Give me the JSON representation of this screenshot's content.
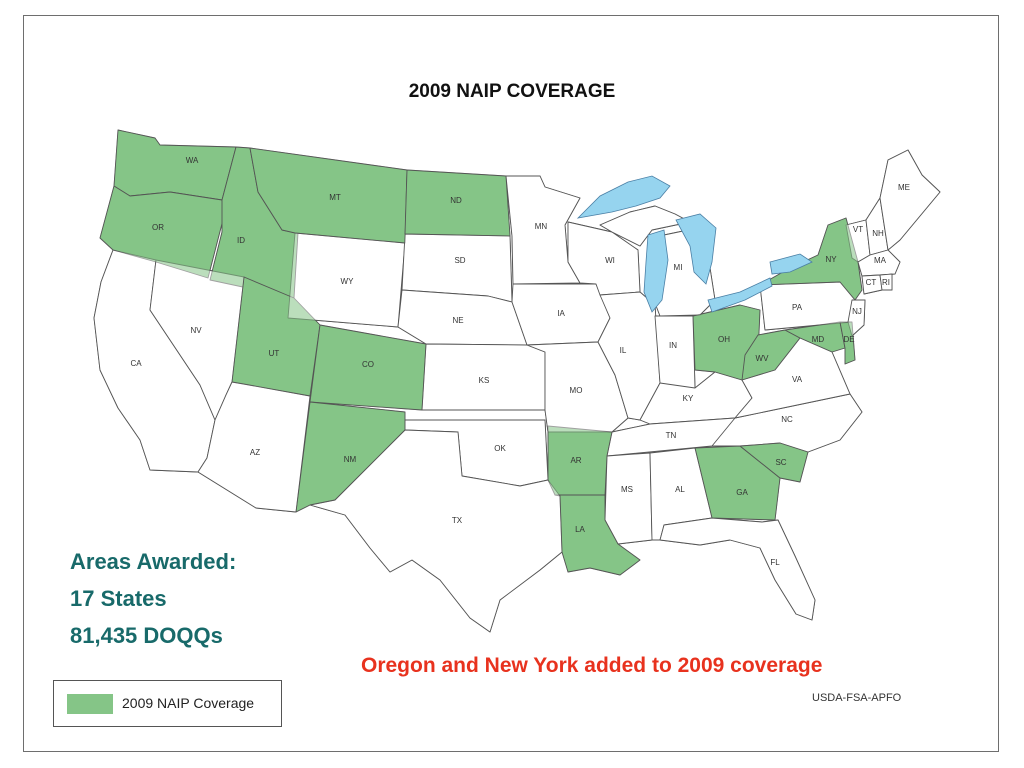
{
  "title": "2009 NAIP COVERAGE",
  "colors": {
    "covered": "#85c587",
    "uncovered": "#ffffff",
    "water": "#96d4ef",
    "border": "#555555",
    "county": "#b9b9b9"
  },
  "summary": {
    "heading": "Areas Awarded:",
    "states": "17 States",
    "doqqs": "81,435 DOQQs"
  },
  "note": "Oregon and New York added to 2009 coverage",
  "credit": "USDA-FSA-APFO",
  "legend": {
    "label": "2009 NAIP Coverage"
  },
  "states": [
    {
      "abbr": "WA",
      "covered": true
    },
    {
      "abbr": "OR",
      "covered": true
    },
    {
      "abbr": "ID",
      "covered": true
    },
    {
      "abbr": "MT",
      "covered": true
    },
    {
      "abbr": "ND",
      "covered": true
    },
    {
      "abbr": "UT",
      "covered": true
    },
    {
      "abbr": "CO",
      "covered": true
    },
    {
      "abbr": "NM",
      "covered": true
    },
    {
      "abbr": "AR",
      "covered": true
    },
    {
      "abbr": "LA",
      "covered": true
    },
    {
      "abbr": "OH",
      "covered": true
    },
    {
      "abbr": "WV",
      "covered": true
    },
    {
      "abbr": "GA",
      "covered": true
    },
    {
      "abbr": "SC",
      "covered": true
    },
    {
      "abbr": "NY",
      "covered": true
    },
    {
      "abbr": "MD",
      "covered": true
    },
    {
      "abbr": "DE",
      "covered": true
    },
    {
      "abbr": "CA",
      "covered": false
    },
    {
      "abbr": "NV",
      "covered": false
    },
    {
      "abbr": "AZ",
      "covered": false
    },
    {
      "abbr": "WY",
      "covered": false
    },
    {
      "abbr": "SD",
      "covered": false
    },
    {
      "abbr": "NE",
      "covered": false
    },
    {
      "abbr": "KS",
      "covered": false
    },
    {
      "abbr": "OK",
      "covered": false
    },
    {
      "abbr": "TX",
      "covered": false
    },
    {
      "abbr": "MN",
      "covered": false
    },
    {
      "abbr": "IA",
      "covered": false
    },
    {
      "abbr": "MO",
      "covered": false
    },
    {
      "abbr": "WI",
      "covered": false
    },
    {
      "abbr": "IL",
      "covered": false
    },
    {
      "abbr": "MI",
      "covered": false
    },
    {
      "abbr": "IN",
      "covered": false
    },
    {
      "abbr": "KY",
      "covered": false
    },
    {
      "abbr": "TN",
      "covered": false
    },
    {
      "abbr": "MS",
      "covered": false
    },
    {
      "abbr": "AL",
      "covered": false
    },
    {
      "abbr": "FL",
      "covered": false
    },
    {
      "abbr": "NC",
      "covered": false
    },
    {
      "abbr": "VA",
      "covered": false
    },
    {
      "abbr": "PA",
      "covered": false
    },
    {
      "abbr": "ME",
      "covered": false
    },
    {
      "abbr": "VT",
      "covered": false
    },
    {
      "abbr": "NH",
      "covered": false
    },
    {
      "abbr": "MA",
      "covered": false
    },
    {
      "abbr": "CT",
      "covered": false
    },
    {
      "abbr": "RI",
      "covered": false
    },
    {
      "abbr": "NJ",
      "covered": false
    }
  ]
}
